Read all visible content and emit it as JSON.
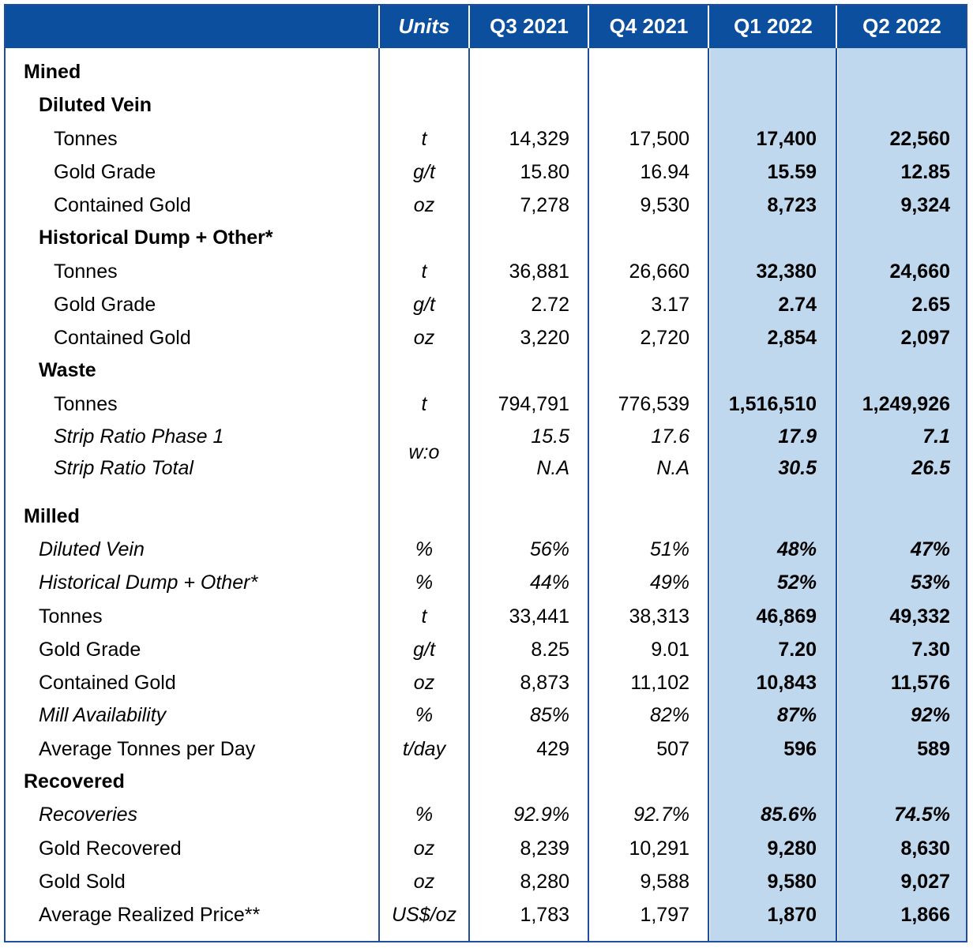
{
  "header": {
    "col0": "",
    "units": "Units",
    "q3_2021": "Q3 2021",
    "q4_2021": "Q4 2021",
    "q1_2022": "Q1 2022",
    "q2_2022": "Q2 2022"
  },
  "strip_units": "w:o",
  "rows": [
    {
      "label": "Mined",
      "style": "i0",
      "units": "",
      "q3": "",
      "q4": "",
      "q1": "",
      "q2": ""
    },
    {
      "label": "Diluted Vein",
      "style": "i1b",
      "units": "",
      "q3": "",
      "q4": "",
      "q1": "",
      "q2": ""
    },
    {
      "label": "Tonnes",
      "style": "i2",
      "units": "t",
      "q3": "14,329",
      "q4": "17,500",
      "q1": "17,400",
      "q2": "22,560"
    },
    {
      "label": "Gold Grade",
      "style": "i2",
      "units": "g/t",
      "q3": "15.80",
      "q4": "16.94",
      "q1": "15.59",
      "q2": "12.85"
    },
    {
      "label": "Contained Gold",
      "style": "i2",
      "units": "oz",
      "q3": "7,278",
      "q4": "9,530",
      "q1": "8,723",
      "q2": "9,324"
    },
    {
      "label": "Historical Dump + Other*",
      "style": "i1b",
      "units": "",
      "q3": "",
      "q4": "",
      "q1": "",
      "q2": ""
    },
    {
      "label": "Tonnes",
      "style": "i2",
      "units": "t",
      "q3": "36,881",
      "q4": "26,660",
      "q1": "32,380",
      "q2": "24,660"
    },
    {
      "label": "Gold Grade",
      "style": "i2",
      "units": "g/t",
      "q3": "2.72",
      "q4": "3.17",
      "q1": "2.74",
      "q2": "2.65"
    },
    {
      "label": "Contained Gold",
      "style": "i2",
      "units": "oz",
      "q3": "3,220",
      "q4": "2,720",
      "q1": "2,854",
      "q2": "2,097"
    },
    {
      "label": "Waste",
      "style": "i1b",
      "units": "",
      "q3": "",
      "q4": "",
      "q1": "",
      "q2": ""
    },
    {
      "label": "Tonnes",
      "style": "i2",
      "units": "t",
      "q3": "794,791",
      "q4": "776,539",
      "q1": "1,516,510",
      "q2": "1,249,926"
    },
    {
      "label": "Strip Ratio Phase 1",
      "style": "i2",
      "italic": true,
      "units": "",
      "q3": "15.5",
      "q4": "17.6",
      "q1": "17.9",
      "q2": "7.1"
    },
    {
      "label": "Strip Ratio Total",
      "style": "i2",
      "italic": true,
      "units": "",
      "q3": "N.A",
      "q4": "N.A",
      "q1": "30.5",
      "q2": "26.5"
    },
    {
      "label": "Milled",
      "style": "i0",
      "units": "",
      "q3": "",
      "q4": "",
      "q1": "",
      "q2": ""
    },
    {
      "label": "Diluted Vein",
      "style": "i1",
      "italic": true,
      "units": "%",
      "q3": "56%",
      "q4": "51%",
      "q1": "48%",
      "q2": "47%"
    },
    {
      "label": "Historical Dump + Other*",
      "style": "i1",
      "italic": true,
      "units": "%",
      "q3": "44%",
      "q4": "49%",
      "q1": "52%",
      "q2": "53%"
    },
    {
      "label": "Tonnes",
      "style": "i1",
      "units": "t",
      "q3": "33,441",
      "q4": "38,313",
      "q1": "46,869",
      "q2": "49,332"
    },
    {
      "label": "Gold Grade",
      "style": "i1",
      "units": "g/t",
      "q3": "8.25",
      "q4": "9.01",
      "q1": "7.20",
      "q2": "7.30"
    },
    {
      "label": "Contained Gold",
      "style": "i1",
      "units": "oz",
      "q3": "8,873",
      "q4": "11,102",
      "q1": "10,843",
      "q2": "11,576"
    },
    {
      "label": "Mill Availability",
      "style": "i1",
      "italic": true,
      "units": "%",
      "q3": "85%",
      "q4": "82%",
      "q1": "87%",
      "q2": "92%"
    },
    {
      "label": "Average Tonnes per Day",
      "style": "i1",
      "units": "t/day",
      "q3": "429",
      "q4": "507",
      "q1": "596",
      "q2": "589"
    },
    {
      "label": "Recovered",
      "style": "i0",
      "units": "",
      "q3": "",
      "q4": "",
      "q1": "",
      "q2": ""
    },
    {
      "label": "Recoveries",
      "style": "i1",
      "italic": true,
      "units": "%",
      "q3": "92.9%",
      "q4": "92.7%",
      "q1": "85.6%",
      "q2": "74.5%"
    },
    {
      "label": "Gold Recovered",
      "style": "i1",
      "units": "oz",
      "q3": "8,239",
      "q4": "10,291",
      "q1": "9,280",
      "q2": "8,630"
    },
    {
      "label": "Gold Sold",
      "style": "i1",
      "units": "oz",
      "q3": "8,280",
      "q4": "9,588",
      "q1": "9,580",
      "q2": "9,027"
    },
    {
      "label": "Average Realized Price**",
      "style": "i1",
      "units": "US$/oz",
      "q3": "1,783",
      "q4": "1,797",
      "q1": "1,870",
      "q2": "1,866"
    }
  ]
}
